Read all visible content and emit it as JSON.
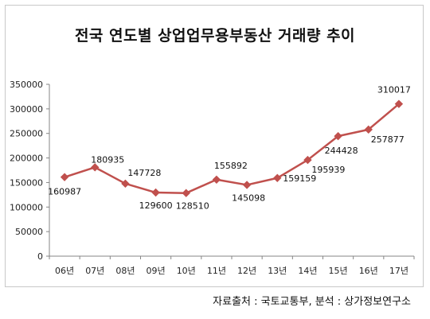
{
  "chart_data": {
    "type": "line",
    "title": "전국 연도별 상업업무용부동산 거래량 추이",
    "categories": [
      "06년",
      "07년",
      "08년",
      "09년",
      "10년",
      "11년",
      "12년",
      "13년",
      "14년",
      "15년",
      "16년",
      "17년"
    ],
    "series": [
      {
        "values": [
          160987,
          180935,
          147728,
          129600,
          128510,
          155892,
          145098,
          159159,
          195939,
          244428,
          257877,
          310017
        ]
      }
    ],
    "ylim": [
      0,
      350000
    ],
    "yticks": [
      "0",
      "50000",
      "100000",
      "150000",
      "200000",
      "250000",
      "300000",
      "350000"
    ],
    "grid": false,
    "legend": "none",
    "colors": {
      "line": "#c0504d",
      "marker": "#c0504d"
    },
    "data_labels": [
      "160987",
      "180935",
      "147728",
      "129600",
      "128510",
      "155892",
      "145098",
      "159159",
      "195939",
      "244428",
      "257877",
      "310017"
    ]
  },
  "footer": {
    "source": "자료출처 : 국토교통부, 분석 : 상가정보연구소"
  }
}
